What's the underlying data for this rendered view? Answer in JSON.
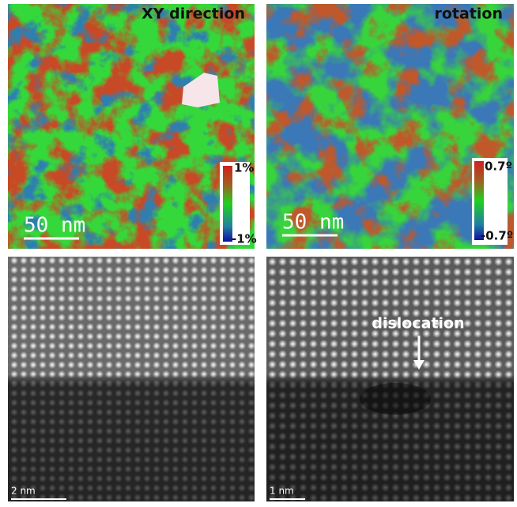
{
  "panels": [
    {
      "title": "XY direction",
      "scale_bar": "50 nm",
      "colorbar_max": "1%",
      "colorbar_min": "-1%"
    },
    {
      "title": "rotation",
      "scale_bar": "50 nm",
      "colorbar_max": "0.7º",
      "colorbar_min": "-0.7º"
    },
    {
      "scale_bar": "2 nm"
    },
    {
      "annotation": "dislocation",
      "scale_bar": "1 nm"
    }
  ]
}
